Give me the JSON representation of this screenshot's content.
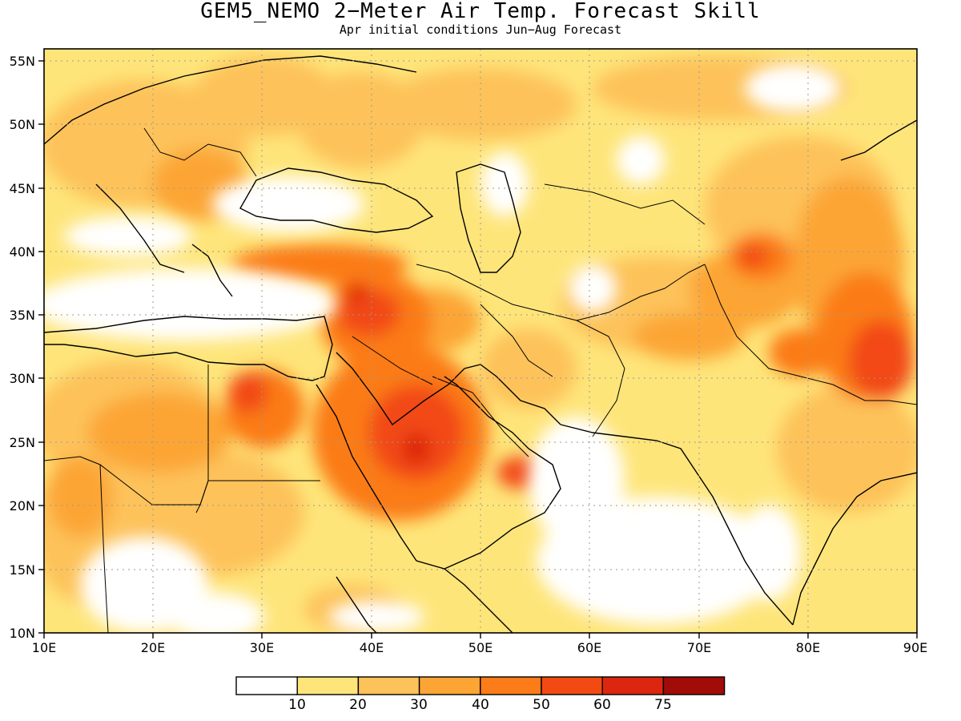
{
  "title": "GEM5_NEMO 2−Meter Air Temp. Forecast Skill",
  "subtitle": "Apr initial conditions  Jun−Aug Forecast",
  "map": {
    "lon_range": [
      10,
      90
    ],
    "lat_range": [
      10,
      56
    ],
    "x_ticks": [
      "10E",
      "20E",
      "30E",
      "40E",
      "50E",
      "60E",
      "70E",
      "80E",
      "90E"
    ],
    "y_ticks": [
      "10N",
      "15N",
      "20N",
      "25N",
      "30N",
      "35N",
      "40N",
      "45N",
      "50N",
      "55N"
    ],
    "grid": "dotted"
  },
  "colorbar": {
    "colors": [
      "#ffffff",
      "#fee57a",
      "#fdc25a",
      "#fca534",
      "#fb7c18",
      "#f24a12",
      "#dd2610",
      "#a20c08"
    ],
    "labels": [
      "10",
      "20",
      "30",
      "40",
      "50",
      "60",
      "75"
    ]
  },
  "legend_colors": {
    "land_outline": "#000000",
    "water": "#ffffff"
  }
}
